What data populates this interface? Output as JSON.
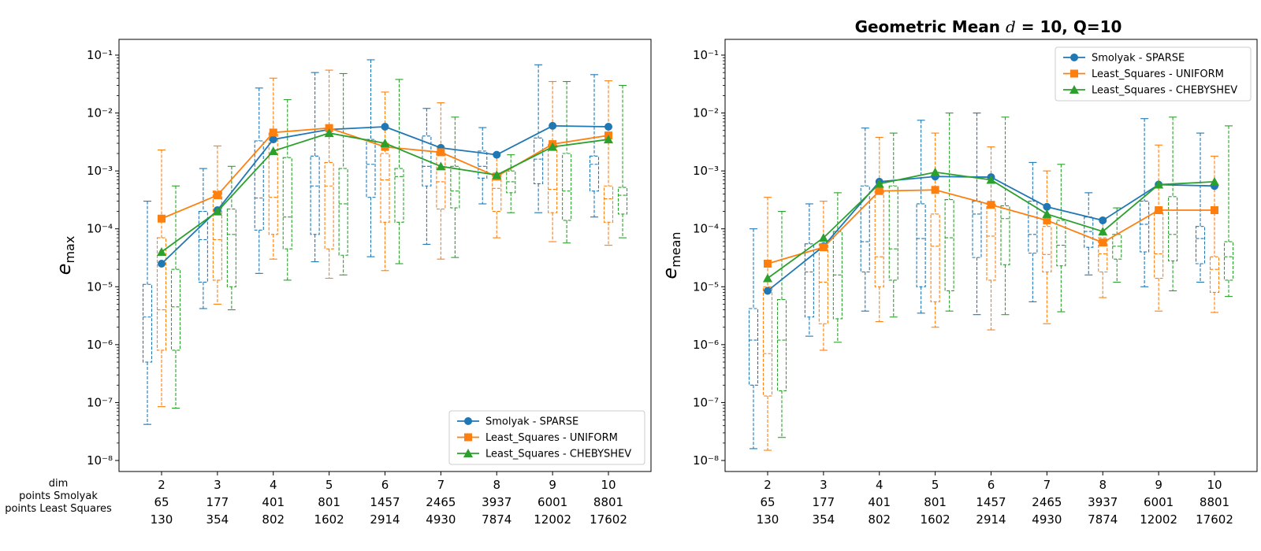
{
  "figure": {
    "title_prefix": "Geometric Mean ",
    "title_var": "d",
    "title_suffix": " = 10, Q=10",
    "row_labels": [
      "dim",
      "points Smolyak",
      "points Least Squares"
    ]
  },
  "chart_data": [
    {
      "type": "line",
      "yscale": "log",
      "ylim": [
        1e-08,
        0.1
      ],
      "ylabel_main": "e",
      "ylabel_sub": "max",
      "legend_position": "lower-right",
      "grid": false,
      "categories": [
        "2",
        "3",
        "4",
        "5",
        "6",
        "7",
        "8",
        "9",
        "10"
      ],
      "points_smolyak": [
        "65",
        "177",
        "401",
        "801",
        "1457",
        "2465",
        "3937",
        "6001",
        "8801"
      ],
      "points_least_squares": [
        "130",
        "354",
        "802",
        "1602",
        "2914",
        "4930",
        "7874",
        "12002",
        "17602"
      ],
      "series": [
        {
          "name": "Smolyak - SPARSE",
          "color": "#1f77b4",
          "marker": "circle",
          "values": [
            2.5e-05,
            0.00021,
            0.0035,
            0.0052,
            0.0058,
            0.0025,
            0.0019,
            0.006,
            0.0058
          ],
          "boxes": [
            {
              "wlo": 4.2e-08,
              "q1": 5e-07,
              "med": 3e-06,
              "q3": 1.1e-05,
              "whi": 0.0003
            },
            {
              "wlo": 4.2e-06,
              "q1": 1.2e-05,
              "med": 6.5e-05,
              "q3": 0.0002,
              "whi": 0.0011
            },
            {
              "wlo": 1.7e-05,
              "q1": 9.5e-05,
              "med": 0.00034,
              "q3": 0.0033,
              "whi": 0.027
            },
            {
              "wlo": 2.7e-05,
              "q1": 8e-05,
              "med": 0.00055,
              "q3": 0.0018,
              "whi": 0.05
            },
            {
              "wlo": 3.3e-05,
              "q1": 0.00035,
              "med": 0.0013,
              "q3": 0.0035,
              "whi": 0.083
            },
            {
              "wlo": 5.4e-05,
              "q1": 0.00055,
              "med": 0.0012,
              "q3": 0.004,
              "whi": 0.012
            },
            {
              "wlo": 0.00027,
              "q1": 0.00075,
              "med": 0.0012,
              "q3": 0.0022,
              "whi": 0.0056
            },
            {
              "wlo": 0.00019,
              "q1": 0.0006,
              "med": 0.0016,
              "q3": 0.0037,
              "whi": 0.068
            },
            {
              "wlo": 0.00016,
              "q1": 0.00045,
              "med": 0.0013,
              "q3": 0.0018,
              "whi": 0.046
            }
          ]
        },
        {
          "name": "Least_Squares - UNIFORM",
          "color": "#ff7f0e",
          "marker": "square",
          "values": [
            0.00015,
            0.00038,
            0.0046,
            0.0055,
            0.0026,
            0.0021,
            0.0008,
            0.0029,
            0.0041
          ],
          "boxes": [
            {
              "wlo": 8.5e-08,
              "q1": 8e-07,
              "med": 4e-06,
              "q3": 7e-05,
              "whi": 0.0023
            },
            {
              "wlo": 5e-06,
              "q1": 1.3e-05,
              "med": 6.5e-05,
              "q3": 0.00045,
              "whi": 0.0027
            },
            {
              "wlo": 3e-05,
              "q1": 8e-05,
              "med": 0.00035,
              "q3": 0.0045,
              "whi": 0.04
            },
            {
              "wlo": 1.4e-05,
              "q1": 4.5e-05,
              "med": 0.00055,
              "q3": 0.0014,
              "whi": 0.055
            },
            {
              "wlo": 1.9e-05,
              "q1": 0.00013,
              "med": 0.0007,
              "q3": 0.002,
              "whi": 0.023
            },
            {
              "wlo": 3e-05,
              "q1": 0.00022,
              "med": 0.00065,
              "q3": 0.0021,
              "whi": 0.015
            },
            {
              "wlo": 7e-05,
              "q1": 0.0002,
              "med": 0.0005,
              "q3": 0.0009,
              "whi": 0.002
            },
            {
              "wlo": 6e-05,
              "q1": 0.00019,
              "med": 0.00048,
              "q3": 0.0029,
              "whi": 0.035
            },
            {
              "wlo": 5.2e-05,
              "q1": 0.00013,
              "med": 0.00033,
              "q3": 0.00055,
              "whi": 0.036
            }
          ]
        },
        {
          "name": "Least_Squares - CHEBYSHEV",
          "color": "#2ca02c",
          "marker": "triangle",
          "values": [
            4e-05,
            0.0002,
            0.0022,
            0.0045,
            0.003,
            0.0012,
            0.00085,
            0.0026,
            0.0035
          ],
          "boxes": [
            {
              "wlo": 8e-08,
              "q1": 8e-07,
              "med": 4.5e-06,
              "q3": 2e-05,
              "whi": 0.00055
            },
            {
              "wlo": 4e-06,
              "q1": 1e-05,
              "med": 8e-05,
              "q3": 0.00022,
              "whi": 0.0012
            },
            {
              "wlo": 1.3e-05,
              "q1": 4.5e-05,
              "med": 0.00016,
              "q3": 0.0017,
              "whi": 0.017
            },
            {
              "wlo": 1.6e-05,
              "q1": 3.5e-05,
              "med": 0.00027,
              "q3": 0.0011,
              "whi": 0.048
            },
            {
              "wlo": 2.5e-05,
              "q1": 0.00013,
              "med": 0.0008,
              "q3": 0.0011,
              "whi": 0.038
            },
            {
              "wlo": 3.2e-05,
              "q1": 0.00023,
              "med": 0.00045,
              "q3": 0.0012,
              "whi": 0.0085
            },
            {
              "wlo": 0.00019,
              "q1": 0.00042,
              "med": 0.00065,
              "q3": 0.001,
              "whi": 0.0019
            },
            {
              "wlo": 5.7e-05,
              "q1": 0.00014,
              "med": 0.00045,
              "q3": 0.002,
              "whi": 0.035
            },
            {
              "wlo": 7e-05,
              "q1": 0.00018,
              "med": 0.00038,
              "q3": 0.00052,
              "whi": 0.03
            }
          ]
        }
      ]
    },
    {
      "type": "line",
      "yscale": "log",
      "ylim": [
        1e-08,
        0.1
      ],
      "ylabel_main": "e",
      "ylabel_sub": "mean",
      "legend_position": "top-right",
      "grid": false,
      "categories": [
        "2",
        "3",
        "4",
        "5",
        "6",
        "7",
        "8",
        "9",
        "10"
      ],
      "points_smolyak": [
        "65",
        "177",
        "401",
        "801",
        "1457",
        "2465",
        "3937",
        "6001",
        "8801"
      ],
      "points_least_squares": [
        "130",
        "354",
        "802",
        "1602",
        "2914",
        "4930",
        "7874",
        "12002",
        "17602"
      ],
      "series": [
        {
          "name": "Smolyak - SPARSE",
          "color": "#1f77b4",
          "marker": "circle",
          "values": [
            8.5e-06,
            5e-05,
            0.00065,
            0.0008,
            0.00078,
            0.00024,
            0.00014,
            0.00058,
            0.00055
          ],
          "boxes": [
            {
              "wlo": 1.6e-08,
              "q1": 2e-07,
              "med": 1.2e-06,
              "q3": 4.2e-06,
              "whi": 0.0001
            },
            {
              "wlo": 1.4e-06,
              "q1": 3e-06,
              "med": 1.8e-05,
              "q3": 5.5e-05,
              "whi": 0.00027
            },
            {
              "wlo": 3.8e-06,
              "q1": 1.8e-05,
              "med": 6e-05,
              "q3": 0.00055,
              "whi": 0.0055
            },
            {
              "wlo": 3.5e-06,
              "q1": 1e-05,
              "med": 6.8e-05,
              "q3": 0.00027,
              "whi": 0.0075
            },
            {
              "wlo": 3.3e-06,
              "q1": 3.2e-05,
              "med": 0.00018,
              "q3": 0.0003,
              "whi": 0.01
            },
            {
              "wlo": 5.5e-06,
              "q1": 3.8e-05,
              "med": 8e-05,
              "q3": 0.0003,
              "whi": 0.0014
            },
            {
              "wlo": 1.6e-05,
              "q1": 4.8e-05,
              "med": 9e-05,
              "q3": 0.00016,
              "whi": 0.00042
            },
            {
              "wlo": 1e-05,
              "q1": 4e-05,
              "med": 0.00012,
              "q3": 0.0003,
              "whi": 0.008
            },
            {
              "wlo": 1.2e-05,
              "q1": 2.5e-05,
              "med": 6.8e-05,
              "q3": 0.00011,
              "whi": 0.0045
            }
          ]
        },
        {
          "name": "Least_Squares - UNIFORM",
          "color": "#ff7f0e",
          "marker": "square",
          "values": [
            2.5e-05,
            4.8e-05,
            0.00045,
            0.00047,
            0.00026,
            0.00014,
            5.8e-05,
            0.00021,
            0.00021
          ],
          "boxes": [
            {
              "wlo": 1.5e-08,
              "q1": 1.3e-07,
              "med": 7e-07,
              "q3": 1e-05,
              "whi": 0.00035
            },
            {
              "wlo": 8e-07,
              "q1": 2.3e-06,
              "med": 1.2e-05,
              "q3": 5.5e-05,
              "whi": 0.0003
            },
            {
              "wlo": 2.5e-06,
              "q1": 1e-05,
              "med": 3.3e-05,
              "q3": 0.00048,
              "whi": 0.0038
            },
            {
              "wlo": 2e-06,
              "q1": 5.5e-06,
              "med": 5e-05,
              "q3": 0.00018,
              "whi": 0.0045
            },
            {
              "wlo": 1.8e-06,
              "q1": 1.3e-05,
              "med": 7.5e-05,
              "q3": 0.00028,
              "whi": 0.0026
            },
            {
              "wlo": 2.3e-06,
              "q1": 1.8e-05,
              "med": 3.6e-05,
              "q3": 0.00011,
              "whi": 0.001
            },
            {
              "wlo": 6.5e-06,
              "q1": 1.8e-05,
              "med": 3.7e-05,
              "q3": 7e-05,
              "whi": 0.00015
            },
            {
              "wlo": 3.8e-06,
              "q1": 1.4e-05,
              "med": 3.7e-05,
              "q3": 0.0002,
              "whi": 0.0028
            },
            {
              "wlo": 3.6e-06,
              "q1": 8e-06,
              "med": 2e-05,
              "q3": 3.3e-05,
              "whi": 0.0018
            }
          ]
        },
        {
          "name": "Least_Squares - CHEBYSHEV",
          "color": "#2ca02c",
          "marker": "triangle",
          "values": [
            1.4e-05,
            7e-05,
            0.0006,
            0.00095,
            0.0007,
            0.00018,
            9e-05,
            0.00058,
            0.00065
          ],
          "boxes": [
            {
              "wlo": 2.5e-08,
              "q1": 1.6e-07,
              "med": 1.2e-06,
              "q3": 6e-06,
              "whi": 0.0002
            },
            {
              "wlo": 1.1e-06,
              "q1": 2.8e-06,
              "med": 1.6e-05,
              "q3": 9e-05,
              "whi": 0.00042
            },
            {
              "wlo": 3e-06,
              "q1": 1.3e-05,
              "med": 4.5e-05,
              "q3": 0.00055,
              "whi": 0.0045
            },
            {
              "wlo": 3.8e-06,
              "q1": 8.5e-06,
              "med": 7e-05,
              "q3": 0.00032,
              "whi": 0.01
            },
            {
              "wlo": 3.3e-06,
              "q1": 2.4e-05,
              "med": 0.00015,
              "q3": 0.00025,
              "whi": 0.0085
            },
            {
              "wlo": 3.7e-06,
              "q1": 2.3e-05,
              "med": 5.2e-05,
              "q3": 0.00014,
              "whi": 0.0013
            },
            {
              "wlo": 1.2e-05,
              "q1": 3e-05,
              "med": 5e-05,
              "q3": 8e-05,
              "whi": 0.00023
            },
            {
              "wlo": 8.5e-06,
              "q1": 2.8e-05,
              "med": 8e-05,
              "q3": 0.00036,
              "whi": 0.0085
            },
            {
              "wlo": 6.8e-06,
              "q1": 1.3e-05,
              "med": 3.3e-05,
              "q3": 6e-05,
              "whi": 0.006
            }
          ]
        }
      ]
    }
  ]
}
